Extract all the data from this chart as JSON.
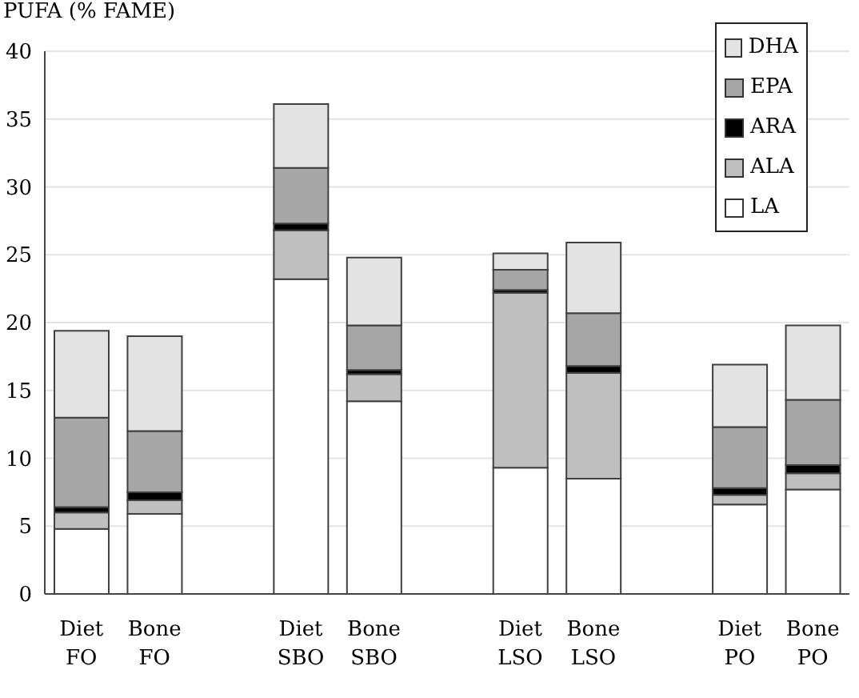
{
  "chart_data": {
    "type": "bar",
    "ylabel": "PUFA (% FAME)",
    "stacked": true,
    "categories": [
      "Diet\nFO",
      "Bone\nFO",
      null,
      "Diet\nSBO",
      "Bone\nSBO",
      null,
      "Diet\nLSO",
      "Bone\nLSO",
      null,
      "Diet\nPO",
      "Bone\nPO"
    ],
    "series": [
      {
        "name": "LA",
        "color": "#ffffff",
        "values": [
          4.8,
          5.9,
          null,
          23.2,
          14.2,
          null,
          9.3,
          8.5,
          null,
          6.6,
          7.7
        ]
      },
      {
        "name": "ALA",
        "color": "#bfbfbf",
        "values": [
          1.2,
          1.0,
          null,
          3.6,
          2.0,
          null,
          12.9,
          7.8,
          null,
          0.7,
          1.2
        ]
      },
      {
        "name": "ARA",
        "color": "#000000",
        "values": [
          0.4,
          0.6,
          null,
          0.5,
          0.3,
          null,
          0.2,
          0.5,
          null,
          0.5,
          0.6
        ]
      },
      {
        "name": "EPA",
        "color": "#a6a6a6",
        "values": [
          6.6,
          4.5,
          null,
          4.1,
          3.3,
          null,
          1.5,
          3.9,
          null,
          4.5,
          4.8
        ]
      },
      {
        "name": "DHA",
        "color": "#e3e3e3",
        "values": [
          6.4,
          7.0,
          null,
          4.7,
          5.0,
          null,
          1.2,
          5.2,
          null,
          4.6,
          5.5
        ]
      }
    ],
    "ylim": [
      0,
      40
    ],
    "yticks": [
      0,
      5,
      10,
      15,
      20,
      25,
      30,
      35,
      40
    ],
    "grid": "y",
    "legend": "top right"
  }
}
